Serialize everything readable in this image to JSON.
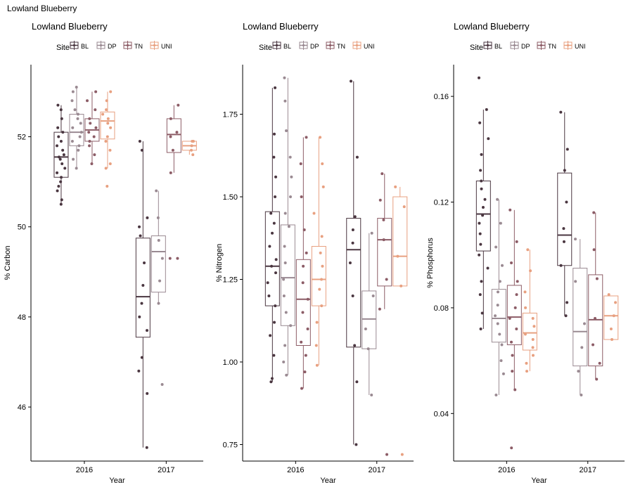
{
  "page_title": "Lowland Blueberry",
  "colors": {
    "BL": "#4a3640",
    "DP": "#9a8a92",
    "TN": "#8c5c66",
    "UNI": "#e8a080"
  },
  "chart_data": [
    {
      "type": "box",
      "title": "Lowland Blueberry",
      "legend_title": "Site",
      "legend_entries": [
        "BL",
        "DP",
        "TN",
        "UNI"
      ],
      "legend_placement": "top",
      "xlabel": "Year",
      "ylabel": "% Carbon",
      "categories": [
        "2016",
        "2017"
      ],
      "ylim": [
        44.8,
        53.6
      ],
      "yticks": [
        46,
        48,
        50,
        52
      ],
      "grid": false,
      "series": [
        {
          "name": "BL",
          "boxes": [
            {
              "min": 50.5,
              "q1": 51.1,
              "median": 51.55,
              "q3": 52.1,
              "max": 52.7,
              "points": [
                50.5,
                50.6,
                50.8,
                50.9,
                51.0,
                51.1,
                51.2,
                51.3,
                51.4,
                51.5,
                51.55,
                51.6,
                51.7,
                51.8,
                51.9,
                52.0,
                52.1,
                52.2,
                52.4,
                52.6,
                52.7
              ]
            },
            {
              "min": 45.1,
              "q1": 47.55,
              "median": 48.45,
              "q3": 49.75,
              "max": 51.9,
              "points": [
                45.1,
                46.3,
                46.8,
                47.1,
                47.7,
                48.0,
                48.3,
                48.7,
                49.2,
                49.8,
                50.0,
                50.2,
                51.7,
                51.9
              ]
            }
          ]
        },
        {
          "name": "DP",
          "boxes": [
            {
              "min": 51.3,
              "q1": 51.8,
              "median": 52.1,
              "q3": 52.5,
              "max": 53.1,
              "points": [
                51.3,
                51.5,
                51.7,
                51.8,
                51.9,
                52.0,
                52.1,
                52.2,
                52.3,
                52.4,
                52.5,
                52.6,
                52.8,
                53.0,
                53.1
              ]
            },
            {
              "min": 48.3,
              "q1": 48.55,
              "median": 49.45,
              "q3": 49.8,
              "max": 50.8,
              "points": [
                46.5,
                48.3,
                48.8,
                49.3,
                49.7,
                50.2,
                50.8
              ]
            }
          ]
        },
        {
          "name": "TN",
          "boxes": [
            {
              "min": 51.4,
              "q1": 51.9,
              "median": 52.15,
              "q3": 52.4,
              "max": 53.0,
              "points": [
                51.4,
                51.6,
                51.8,
                51.9,
                52.0,
                52.1,
                52.2,
                52.3,
                52.4,
                52.6,
                52.8,
                53.0
              ]
            },
            {
              "min": 51.2,
              "q1": 51.65,
              "median": 52.05,
              "q3": 52.4,
              "max": 52.7,
              "points": [
                49.3,
                49.3,
                51.2,
                51.7,
                52.0,
                52.1,
                52.4,
                52.7
              ]
            }
          ]
        },
        {
          "name": "UNI",
          "boxes": [
            {
              "min": 51.3,
              "q1": 51.95,
              "median": 52.35,
              "q3": 52.55,
              "max": 53.0,
              "points": [
                50.9,
                51.3,
                51.4,
                51.7,
                51.9,
                52.0,
                52.2,
                52.3,
                52.4,
                52.5,
                52.6,
                52.8,
                53.0
              ]
            },
            {
              "min": 51.6,
              "q1": 51.7,
              "median": 51.8,
              "q3": 51.9,
              "max": 51.9,
              "points": [
                51.6,
                51.7,
                51.8,
                51.9,
                51.9
              ]
            }
          ]
        }
      ]
    },
    {
      "type": "box",
      "title": "Lowland Blueberry",
      "legend_title": "Site",
      "legend_entries": [
        "BL",
        "DP",
        "TN",
        "UNI"
      ],
      "legend_placement": "top",
      "xlabel": "Year",
      "ylabel": "% Nitrogen",
      "categories": [
        "2016",
        "2017"
      ],
      "ylim": [
        0.7,
        1.9
      ],
      "yticks": [
        0.75,
        1.0,
        1.25,
        1.5,
        1.75
      ],
      "tick_labels": [
        "0.75",
        "1.00",
        "1.25",
        "1.50",
        "1.75"
      ],
      "grid": false,
      "series": [
        {
          "name": "BL",
          "boxes": [
            {
              "min": 0.94,
              "q1": 1.17,
              "median": 1.29,
              "q3": 1.455,
              "max": 1.83,
              "points": [
                0.94,
                0.95,
                1.02,
                1.08,
                1.12,
                1.17,
                1.2,
                1.24,
                1.27,
                1.29,
                1.31,
                1.35,
                1.39,
                1.42,
                1.45,
                1.5,
                1.56,
                1.62,
                1.69,
                1.83
              ]
            },
            {
              "min": 0.75,
              "q1": 1.045,
              "median": 1.34,
              "q3": 1.435,
              "max": 1.85,
              "points": [
                0.75,
                0.94,
                1.05,
                1.2,
                1.3,
                1.36,
                1.4,
                1.44,
                1.62,
                1.85
              ]
            }
          ]
        },
        {
          "name": "DP",
          "boxes": [
            {
              "min": 0.96,
              "q1": 1.11,
              "median": 1.255,
              "q3": 1.415,
              "max": 1.86,
              "points": [
                0.96,
                1.0,
                1.05,
                1.11,
                1.15,
                1.2,
                1.25,
                1.3,
                1.35,
                1.41,
                1.45,
                1.5,
                1.56,
                1.62,
                1.7,
                1.79,
                1.86
              ]
            },
            {
              "min": 0.9,
              "q1": 1.04,
              "median": 1.13,
              "q3": 1.215,
              "max": 1.39,
              "points": [
                0.9,
                1.04,
                1.1,
                1.2,
                1.39
              ]
            }
          ]
        },
        {
          "name": "TN",
          "boxes": [
            {
              "min": 0.92,
              "q1": 1.05,
              "median": 1.19,
              "q3": 1.31,
              "max": 1.68,
              "points": [
                0.92,
                0.97,
                1.02,
                1.06,
                1.1,
                1.15,
                1.19,
                1.24,
                1.29,
                1.33,
                1.4,
                1.5,
                1.6,
                1.68
              ]
            },
            {
              "min": 1.16,
              "q1": 1.23,
              "median": 1.37,
              "q3": 1.435,
              "max": 1.57,
              "points": [
                0.72,
                1.16,
                1.25,
                1.37,
                1.43,
                1.49,
                1.57
              ]
            }
          ]
        },
        {
          "name": "UNI",
          "boxes": [
            {
              "min": 0.99,
              "q1": 1.17,
              "median": 1.25,
              "q3": 1.35,
              "max": 1.68,
              "points": [
                0.99,
                1.05,
                1.12,
                1.17,
                1.22,
                1.25,
                1.29,
                1.33,
                1.38,
                1.45,
                1.53,
                1.6,
                1.68
              ]
            },
            {
              "min": 1.23,
              "q1": 1.23,
              "median": 1.32,
              "q3": 1.5,
              "max": 1.53,
              "points": [
                0.72,
                1.23,
                1.32,
                1.47,
                1.53
              ]
            }
          ]
        }
      ]
    },
    {
      "type": "box",
      "title": "Lowland Blueberry",
      "legend_title": "Site",
      "legend_entries": [
        "BL",
        "DP",
        "TN",
        "UNI"
      ],
      "legend_placement": "top",
      "xlabel": "Year",
      "ylabel": "% Phosphorus",
      "categories": [
        "2016",
        "2017"
      ],
      "ylim": [
        0.022,
        0.172
      ],
      "yticks": [
        0.04,
        0.08,
        0.12,
        0.16
      ],
      "tick_labels": [
        "0.04",
        "0.08",
        "0.12",
        "0.16"
      ],
      "grid": false,
      "series": [
        {
          "name": "BL",
          "boxes": [
            {
              "min": 0.072,
              "q1": 0.1015,
              "median": 0.1155,
              "q3": 0.128,
              "max": 0.155,
              "points": [
                0.072,
                0.078,
                0.085,
                0.09,
                0.095,
                0.1,
                0.104,
                0.108,
                0.112,
                0.115,
                0.118,
                0.121,
                0.125,
                0.128,
                0.132,
                0.138,
                0.144,
                0.15,
                0.155,
                0.167
              ]
            },
            {
              "min": 0.077,
              "q1": 0.096,
              "median": 0.1075,
              "q3": 0.131,
              "max": 0.154,
              "points": [
                0.077,
                0.082,
                0.096,
                0.105,
                0.11,
                0.12,
                0.132,
                0.14,
                0.154
              ]
            }
          ]
        },
        {
          "name": "DP",
          "boxes": [
            {
              "min": 0.047,
              "q1": 0.067,
              "median": 0.076,
              "q3": 0.087,
              "max": 0.121,
              "points": [
                0.047,
                0.055,
                0.06,
                0.066,
                0.07,
                0.074,
                0.077,
                0.081,
                0.086,
                0.09,
                0.096,
                0.103,
                0.112,
                0.121
              ]
            },
            {
              "min": 0.047,
              "q1": 0.058,
              "median": 0.071,
              "q3": 0.095,
              "max": 0.106,
              "points": [
                0.047,
                0.056,
                0.065,
                0.074,
                0.09,
                0.106
              ]
            }
          ]
        },
        {
          "name": "TN",
          "boxes": [
            {
              "min": 0.049,
              "q1": 0.066,
              "median": 0.0765,
              "q3": 0.0885,
              "max": 0.117,
              "points": [
                0.027,
                0.049,
                0.056,
                0.062,
                0.067,
                0.072,
                0.076,
                0.08,
                0.085,
                0.09,
                0.097,
                0.105,
                0.117
              ]
            },
            {
              "min": 0.053,
              "q1": 0.058,
              "median": 0.0755,
              "q3": 0.0925,
              "max": 0.116,
              "points": [
                0.053,
                0.059,
                0.066,
                0.076,
                0.091,
                0.102,
                0.116
              ]
            }
          ]
        },
        {
          "name": "UNI",
          "boxes": [
            {
              "min": 0.056,
              "q1": 0.064,
              "median": 0.0705,
              "q3": 0.078,
              "max": 0.102,
              "points": [
                0.056,
                0.059,
                0.062,
                0.065,
                0.068,
                0.07,
                0.073,
                0.076,
                0.08,
                0.086,
                0.094,
                0.102
              ]
            },
            {
              "min": 0.068,
              "q1": 0.068,
              "median": 0.077,
              "q3": 0.0845,
              "max": 0.0845,
              "points": [
                0.068,
                0.072,
                0.077,
                0.082,
                0.085
              ]
            }
          ]
        }
      ]
    }
  ]
}
